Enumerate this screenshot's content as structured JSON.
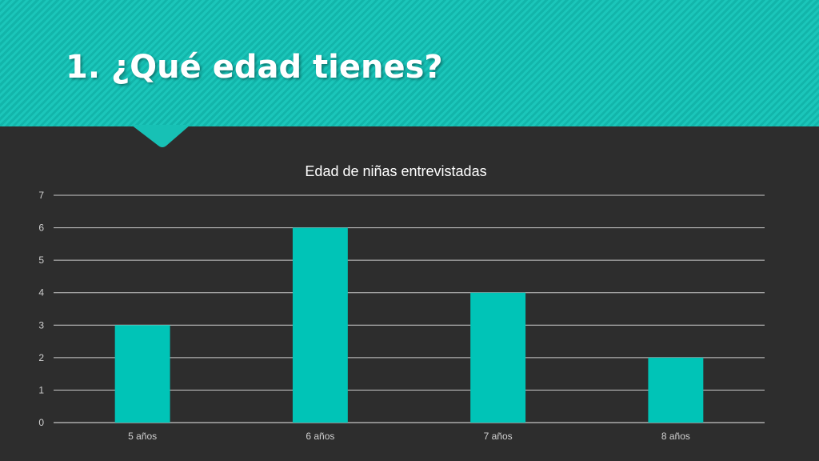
{
  "slide": {
    "title": "1. ¿Qué edad tienes?"
  },
  "colors": {
    "background": "#2d2d2d",
    "banner": "#17c1b5",
    "bar": "#00c4b7",
    "gridline": "#ffffff",
    "text": "#ffffff"
  },
  "chart_data": {
    "type": "bar",
    "title": "Edad de niñas entrevistadas",
    "categories": [
      "5 años",
      "6 años",
      "7 años",
      "8 años"
    ],
    "values": [
      3,
      6,
      4,
      2
    ],
    "xlabel": "",
    "ylabel": "",
    "ylim": [
      0,
      7
    ],
    "yticks": [
      "0",
      "1",
      "2",
      "3",
      "4",
      "5",
      "6",
      "7"
    ],
    "grid": true,
    "legend": "none"
  }
}
